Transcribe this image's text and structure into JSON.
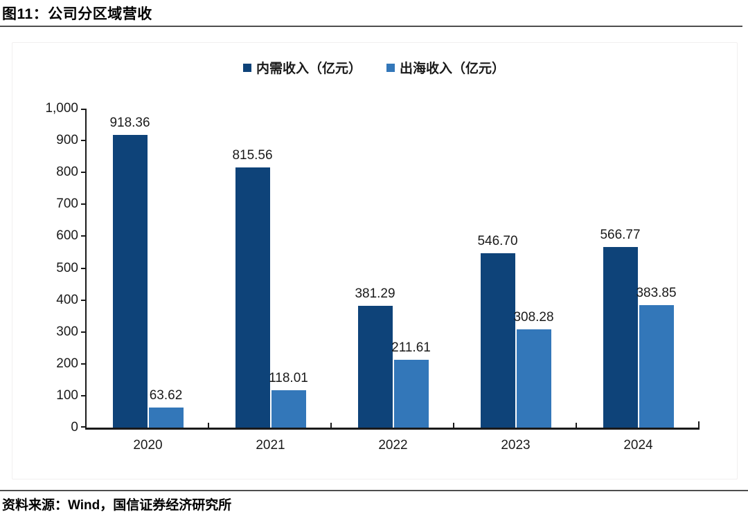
{
  "header": {
    "title": "图11：公司分区域营收"
  },
  "footer": {
    "source": "资料来源：Wind，国信证券经济研究所"
  },
  "colors": {
    "series_domestic": "#0E4379",
    "series_overseas": "#3377B9",
    "axis": "#1a1a1a",
    "rule": "#4d4d4d"
  },
  "chart_data": {
    "type": "bar",
    "categories": [
      "2020",
      "2021",
      "2022",
      "2023",
      "2024"
    ],
    "series": [
      {
        "name": "内需收入（亿元）",
        "color": "#0E4379",
        "values": [
          918.36,
          815.56,
          381.29,
          546.7,
          566.77
        ]
      },
      {
        "name": "出海收入（亿元）",
        "color": "#3377B9",
        "values": [
          63.62,
          118.01,
          211.61,
          308.28,
          383.85
        ]
      }
    ],
    "title": "图11：公司分区域营收",
    "xlabel": "",
    "ylabel": "",
    "ylim": [
      0,
      1000
    ],
    "ytick_step": 100,
    "ytick_labels": [
      "0",
      "100",
      "200",
      "300",
      "400",
      "500",
      "600",
      "700",
      "800",
      "900",
      "1,000"
    ],
    "grid": false,
    "legend_position": "top-center",
    "data_labels": true,
    "data_label_decimals": 2
  }
}
